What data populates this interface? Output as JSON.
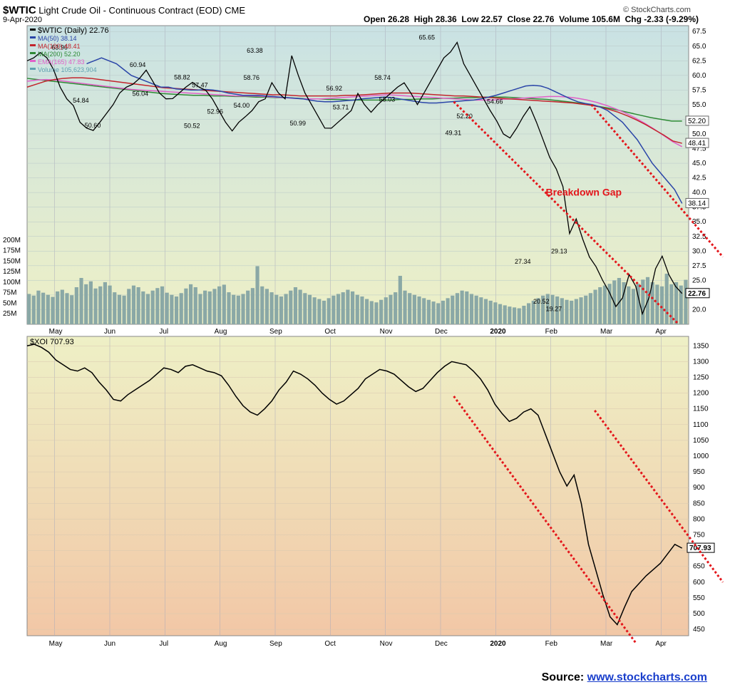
{
  "header": {
    "symbol": "$WTIC",
    "name": "Light Crude Oil - Continuous Contract (EOD)",
    "exchange": "CME",
    "date": "9-Apr-2020",
    "brand": "© StockCharts.com",
    "open": "Open 26.28",
    "high": "High 28.36",
    "low": "Low 22.57",
    "close": "Close 22.76",
    "volume": "Volume 105.6M",
    "change": "Chg -2.33 (-9.29%)"
  },
  "source": {
    "prefix": "Source: ",
    "link": "www.stockcharts.com"
  },
  "colors": {
    "bg_top": "#c9e2e4",
    "bg_mid": "#eef0c6",
    "bg_bottom": "#f2c7a6",
    "trend": "#e3161b",
    "ma50": "#2a45a8",
    "ma100": "#c2242c",
    "ma200": "#2e8a35",
    "ema165": "#e060c8",
    "volume": "#8aa8a6",
    "price": "#000000"
  },
  "chart_data": [
    {
      "type": "line",
      "title": "$WTIC (Daily) 22.76",
      "x_labels": [
        "May",
        "Jun",
        "Jul",
        "Aug",
        "Sep",
        "Oct",
        "Nov",
        "Dec",
        "2020",
        "Feb",
        "Mar",
        "Apr"
      ],
      "y_ticks": [
        "67.5",
        "65.0",
        "62.5",
        "60.0",
        "57.5",
        "55.0",
        "52.5",
        "50.0",
        "47.5",
        "45.0",
        "42.5",
        "40.0",
        "37.5",
        "35.0",
        "32.5",
        "30.0",
        "27.5",
        "25.0",
        "22.5",
        "20.0"
      ],
      "ylim": [
        17.5,
        68.5
      ],
      "volume_ticks": [
        "200M",
        "175M",
        "150M",
        "125M",
        "100M",
        "75M",
        "50M",
        "25M"
      ],
      "legend": [
        {
          "label": "$WTIC (Daily) 22.76",
          "color": "#000000"
        },
        {
          "label": "MA(50) 38.14",
          "color": "#2a45a8"
        },
        {
          "label": "MA(100) 48.41",
          "color": "#c2242c"
        },
        {
          "label": "MA(200) 52.20",
          "color": "#2e8a35"
        },
        {
          "label": "EMA(165) 47.83",
          "color": "#e060c8"
        },
        {
          "label": "Volume 105,623,904",
          "color": "#5fa0b0"
        }
      ],
      "price_labels": [
        {
          "t": 0.05,
          "v": 63.96,
          "text": "63.96"
        },
        {
          "t": 0.082,
          "v": 54.84,
          "text": "54.84"
        },
        {
          "t": 0.1,
          "v": 50.6,
          "text": "50.60"
        },
        {
          "t": 0.168,
          "v": 60.94,
          "text": "60.94"
        },
        {
          "t": 0.172,
          "v": 56.04,
          "text": "56.04"
        },
        {
          "t": 0.235,
          "v": 58.82,
          "text": "58.82"
        },
        {
          "t": 0.262,
          "v": 57.47,
          "text": "57.47"
        },
        {
          "t": 0.25,
          "v": 50.52,
          "text": "50.52"
        },
        {
          "t": 0.285,
          "v": 52.96,
          "text": "52.96"
        },
        {
          "t": 0.34,
          "v": 58.76,
          "text": "58.76"
        },
        {
          "t": 0.325,
          "v": 54.0,
          "text": "54.00"
        },
        {
          "t": 0.345,
          "v": 63.38,
          "text": "63.38"
        },
        {
          "t": 0.41,
          "v": 50.99,
          "text": "50.99"
        },
        {
          "t": 0.465,
          "v": 56.92,
          "text": "56.92"
        },
        {
          "t": 0.475,
          "v": 53.71,
          "text": "53.71"
        },
        {
          "t": 0.538,
          "v": 58.74,
          "text": "58.74"
        },
        {
          "t": 0.545,
          "v": 55.03,
          "text": "55.03"
        },
        {
          "t": 0.605,
          "v": 65.65,
          "text": "65.65"
        },
        {
          "t": 0.662,
          "v": 52.2,
          "text": "52.20"
        },
        {
          "t": 0.645,
          "v": 49.31,
          "text": "49.31"
        },
        {
          "t": 0.708,
          "v": 54.66,
          "text": "54.66"
        },
        {
          "t": 0.75,
          "v": 27.34,
          "text": "27.34"
        },
        {
          "t": 0.778,
          "v": 20.52,
          "text": "20.52"
        },
        {
          "t": 0.805,
          "v": 29.13,
          "text": "29.13"
        },
        {
          "t": 0.797,
          "v": 19.27,
          "text": "19.27"
        }
      ],
      "annotation": "Breakdown Gap",
      "last_price": "22.76",
      "ma_end_labels": [
        "52.20",
        "48.41",
        "38.14"
      ],
      "price": [
        62.5,
        63,
        63.9,
        63,
        61,
        58,
        56,
        54.84,
        52,
        51,
        50.6,
        52,
        53.5,
        55,
        57,
        58,
        58.5,
        59.5,
        60.9,
        59,
        57,
        56,
        56.04,
        57,
        58,
        58.82,
        58,
        57.47,
        56,
        54,
        52,
        50.52,
        52,
        52.96,
        54,
        55.5,
        56,
        58.76,
        57,
        56,
        63.38,
        60,
        57,
        55,
        53,
        51,
        50.99,
        52,
        53,
        54,
        56.92,
        55,
        53.71,
        55,
        56,
        57,
        58,
        58.74,
        57,
        55.03,
        57,
        59,
        61,
        63,
        64,
        65.65,
        62,
        60,
        58,
        56,
        54,
        52.2,
        50,
        49.31,
        51,
        53,
        54.66,
        52,
        49,
        46,
        44,
        41,
        33,
        35.5,
        32,
        29,
        27.34,
        25,
        23,
        20.52,
        22,
        26,
        24,
        19.27,
        22,
        27,
        29.13,
        26,
        24,
        22.76
      ],
      "ma50": [
        62,
        62.5,
        63,
        62.5,
        62,
        61,
        60,
        59.5,
        59,
        58.5,
        58,
        58,
        57.7,
        57.6,
        57.5,
        57.5,
        57.6,
        57.5,
        57.3,
        57,
        56.8,
        56.6,
        56.6,
        56.6,
        56.5,
        56.4,
        56.3,
        56.2,
        56.1,
        56,
        55.8,
        55.6,
        55.5,
        55.5,
        55.6,
        55.7,
        55.8,
        56,
        56.1,
        56.2,
        56.3,
        56.2,
        56,
        55.8,
        55.6,
        55.4,
        55.3,
        55.3,
        55.4,
        55.5,
        55.6,
        55.7,
        55.8,
        56,
        56.3,
        56.6,
        57,
        57.4,
        57.8,
        58.2,
        58.3,
        58.2,
        57.8,
        57.2,
        56.6,
        56,
        55.5,
        55.2,
        55,
        54.6,
        54,
        53,
        52,
        50.5,
        49,
        47,
        45,
        43.5,
        42,
        40.5,
        38.14
      ],
      "ma100": [
        58,
        58.5,
        59,
        59.3,
        59.5,
        59.6,
        59.6,
        59.5,
        59.3,
        59.1,
        58.9,
        58.7,
        58.5,
        58.3,
        58.1,
        57.9,
        57.8,
        57.7,
        57.6,
        57.5,
        57.4,
        57.3,
        57.2,
        57.1,
        57,
        56.9,
        56.8,
        56.7,
        56.7,
        56.6,
        56.5,
        56.5,
        56.5,
        56.5,
        56.5,
        56.6,
        56.6,
        56.7,
        56.8,
        56.9,
        57,
        57,
        57,
        56.9,
        56.8,
        56.7,
        56.6,
        56.5,
        56.5,
        56.4,
        56.3,
        56.2,
        56.1,
        56,
        55.9,
        55.8,
        55.7,
        55.6,
        55.5,
        55.4,
        55.3,
        55.1,
        54.9,
        54.6,
        54.2,
        53.7,
        53.1,
        52.4,
        51.6,
        50.7,
        49.8,
        48.8,
        48.41
      ],
      "ma200": [
        59.5,
        59.3,
        59.1,
        58.9,
        58.7,
        58.5,
        58.3,
        58.1,
        57.9,
        57.7,
        57.5,
        57.3,
        57.1,
        56.9,
        56.8,
        56.7,
        56.6,
        56.6,
        56.5,
        56.5,
        56.4,
        56.4,
        56.3,
        56.3,
        56.2,
        56.2,
        56.1,
        56,
        56,
        55.9,
        55.9,
        55.8,
        55.8,
        55.8,
        55.8,
        55.8,
        55.9,
        55.9,
        56,
        56,
        56.1,
        56.1,
        56.2,
        56.2,
        56.3,
        56.3,
        56.3,
        56.2,
        56.1,
        56,
        55.9,
        55.7,
        55.5,
        55.3,
        55,
        54.7,
        54.4,
        54,
        53.6,
        53.2,
        52.8,
        52.5,
        52.2,
        52.2
      ],
      "ema165": [
        59,
        59.2,
        59.3,
        59.2,
        59,
        58.8,
        58.6,
        58.4,
        58.2,
        58,
        57.8,
        57.6,
        57.5,
        57.4,
        57.3,
        57.2,
        57.1,
        57,
        56.9,
        56.8,
        56.7,
        56.6,
        56.5,
        56.5,
        56.5,
        56.4,
        56.3,
        56.2,
        56.1,
        56,
        56,
        56,
        56.1,
        56.2,
        56.3,
        56.4,
        56.5,
        56.6,
        56.7,
        56.6,
        56.5,
        56.4,
        56.3,
        56.2,
        56.1,
        56,
        55.9,
        55.8,
        55.8,
        55.8,
        55.9,
        56,
        56.1,
        56.2,
        56.3,
        56.4,
        56.4,
        56.3,
        56.1,
        55.8,
        55.4,
        54.9,
        54.3,
        53.6,
        52.8,
        51.9,
        50.9,
        49.8,
        48.7,
        47.83
      ],
      "volume": [
        72,
        68,
        80,
        75,
        70,
        65,
        78,
        82,
        74,
        69,
        88,
        110,
        95,
        102,
        85,
        90,
        100,
        92,
        76,
        70,
        68,
        84,
        92,
        88,
        78,
        72,
        80,
        86,
        90,
        75,
        70,
        66,
        74,
        85,
        95,
        88,
        72,
        80,
        78,
        84,
        90,
        94,
        76,
        70,
        68,
        72,
        80,
        86,
        138,
        90,
        84,
        76,
        70,
        66,
        72,
        80,
        88,
        82,
        74,
        70,
        64,
        60,
        56,
        62,
        68,
        72,
        76,
        82,
        78,
        70,
        66,
        60,
        55,
        52,
        58,
        64,
        70,
        76,
        115,
        80,
        74,
        70,
        66,
        62,
        58,
        54,
        50,
        56,
        62,
        68,
        74,
        80,
        78,
        72,
        68,
        64,
        60,
        56,
        52,
        48,
        45,
        42,
        40,
        38,
        44,
        50,
        56,
        62,
        68,
        72,
        70,
        66,
        62,
        58,
        56,
        60,
        64,
        68,
        74,
        82,
        88,
        92,
        96,
        104,
        110,
        100,
        90,
        84,
        96,
        106,
        112,
        100,
        94,
        90,
        120,
        95,
        100,
        92,
        105.6
      ]
    },
    {
      "type": "line",
      "title": "$XOI 707.93",
      "x_labels": [
        "May",
        "Jun",
        "Jul",
        "Aug",
        "Sep",
        "Oct",
        "Nov",
        "Dec",
        "2020",
        "Feb",
        "Mar",
        "Apr"
      ],
      "y_ticks": [
        "1350",
        "1300",
        "1250",
        "1200",
        "1150",
        "1100",
        "1050",
        "1000",
        "950",
        "900",
        "850",
        "800",
        "750",
        "700",
        "650",
        "600",
        "550",
        "500",
        "450"
      ],
      "ylim": [
        430,
        1380
      ],
      "last_price": "707.93",
      "price": [
        1350,
        1355,
        1345,
        1330,
        1305,
        1290,
        1275,
        1270,
        1280,
        1265,
        1235,
        1210,
        1180,
        1175,
        1195,
        1210,
        1225,
        1240,
        1260,
        1280,
        1275,
        1265,
        1285,
        1290,
        1280,
        1270,
        1265,
        1255,
        1225,
        1190,
        1160,
        1140,
        1130,
        1150,
        1175,
        1210,
        1235,
        1270,
        1260,
        1245,
        1225,
        1200,
        1180,
        1165,
        1175,
        1195,
        1215,
        1245,
        1260,
        1275,
        1270,
        1260,
        1240,
        1220,
        1205,
        1215,
        1240,
        1265,
        1285,
        1300,
        1295,
        1290,
        1270,
        1245,
        1210,
        1165,
        1135,
        1110,
        1120,
        1140,
        1150,
        1130,
        1070,
        1010,
        950,
        905,
        940,
        850,
        720,
        640,
        560,
        490,
        465,
        520,
        570,
        595,
        620,
        640,
        660,
        690,
        720,
        707.93
      ]
    }
  ]
}
